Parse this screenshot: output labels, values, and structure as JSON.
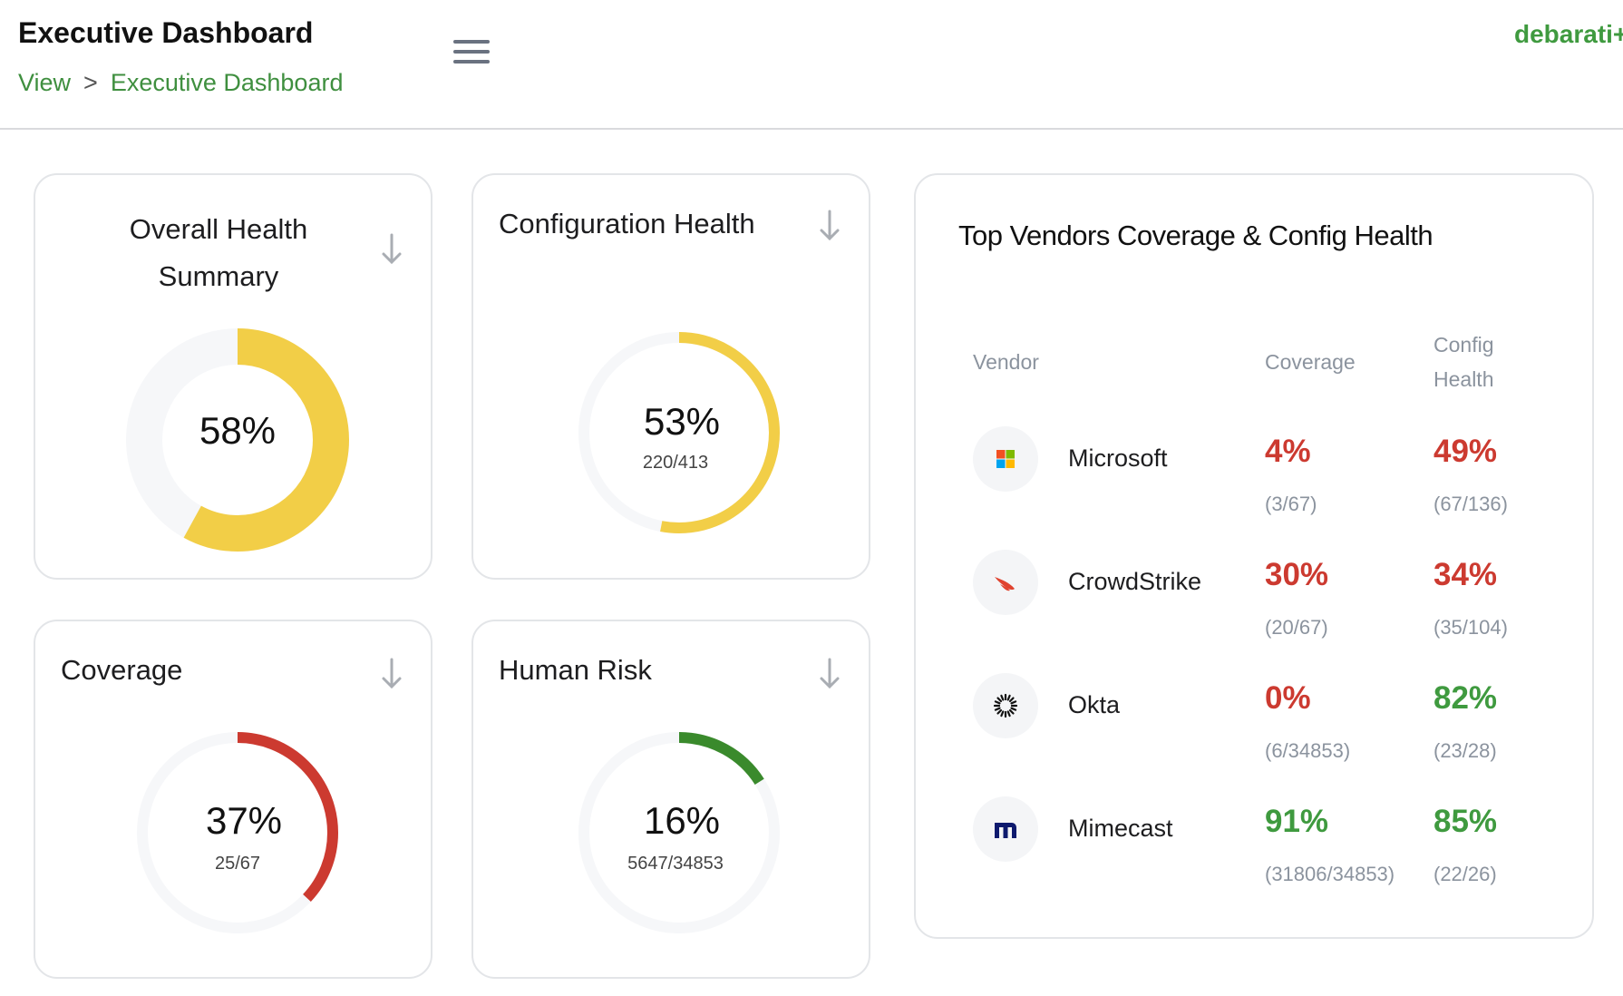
{
  "header": {
    "title": "Executive Dashboard",
    "breadcrumb": [
      "View",
      ">",
      "Executive Dashboard"
    ],
    "user": "debarati+"
  },
  "cards": {
    "overall": {
      "title_line1": "Overall Health",
      "title_line2": "Summary",
      "percent_label": "58%",
      "value": 0.58,
      "color": "#f2ce47"
    },
    "config": {
      "title": "Configuration Health",
      "percent_label": "53%",
      "fraction": "220/413",
      "value": 0.53,
      "color": "#f2ce47"
    },
    "coverage": {
      "title": "Coverage",
      "percent_label": "37%",
      "fraction": "25/67",
      "value": 0.37,
      "color": "#cc3a30"
    },
    "human_risk": {
      "title": "Human Risk",
      "percent_label": "16%",
      "fraction": "5647/34853",
      "value": 0.16,
      "color": "#3a8a2c"
    }
  },
  "vendors": {
    "title": "Top Vendors Coverage & Config Health",
    "col_vendor": "Vendor",
    "col_coverage": "Coverage",
    "col_config_1": "Config",
    "col_config_2": "Health",
    "rows": [
      {
        "name": "Microsoft",
        "icon": "microsoft-logo-icon",
        "coverage": "4%",
        "coverage_frac": "(3/67)",
        "coverage_color": "#cc3a30",
        "config": "49%",
        "config_frac": "(67/136)",
        "config_color": "#cc3a30"
      },
      {
        "name": "CrowdStrike",
        "icon": "crowdstrike-logo-icon",
        "coverage": "30%",
        "coverage_frac": "(20/67)",
        "coverage_color": "#cc3a30",
        "config": "34%",
        "config_frac": "(35/104)",
        "config_color": "#cc3a30"
      },
      {
        "name": "Okta",
        "icon": "okta-logo-icon",
        "coverage": "0%",
        "coverage_frac": "(6/34853)",
        "coverage_color": "#cc3a30",
        "config": "82%",
        "config_frac": "(23/28)",
        "config_color": "#3f9a3f"
      },
      {
        "name": "Mimecast",
        "icon": "mimecast-logo-icon",
        "coverage": "91%",
        "coverage_frac": "(31806/34853)",
        "coverage_color": "#3f9a3f",
        "config": "85%",
        "config_frac": "(22/26)",
        "config_color": "#3f9a3f"
      }
    ]
  }
}
